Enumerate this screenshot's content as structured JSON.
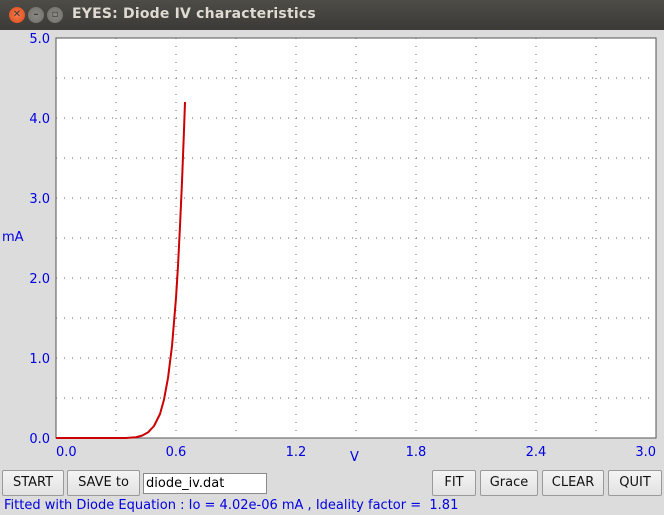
{
  "window": {
    "title": "EYES: Diode IV characteristics",
    "close_glyph": "✕",
    "minimize_glyph": "–",
    "maximize_glyph": "▫"
  },
  "chart_data": {
    "type": "line",
    "xlabel": "V",
    "ylabel": "mA",
    "xlim": [
      0.0,
      3.0
    ],
    "ylim": [
      0.0,
      5.0
    ],
    "x_ticks": [
      "0.0",
      "0.6",
      "1.2",
      "1.8",
      "2.4",
      "3.0"
    ],
    "y_ticks": [
      "0.0",
      "1.0",
      "2.0",
      "3.0",
      "4.0",
      "5.0"
    ],
    "grid": "dotted",
    "background": "#ffffff",
    "series": [
      {
        "color": "#cc0000",
        "x": [
          0.0,
          0.1,
          0.2,
          0.3,
          0.35,
          0.4,
          0.43,
          0.46,
          0.49,
          0.52,
          0.54,
          0.56,
          0.58,
          0.6,
          0.61,
          0.62,
          0.63,
          0.64,
          0.645
        ],
        "y": [
          0.0,
          0.0,
          0.0,
          0.0,
          0.0,
          0.01,
          0.03,
          0.07,
          0.15,
          0.3,
          0.48,
          0.75,
          1.15,
          1.75,
          2.15,
          2.65,
          3.2,
          3.85,
          4.2
        ]
      }
    ]
  },
  "controls": {
    "start_label": "START",
    "save_label": "SAVE to",
    "filename_value": "diode_iv.dat",
    "fit_label": "FIT",
    "grace_label": "Grace",
    "clear_label": "CLEAR",
    "quit_label": "QUIT"
  },
  "status": {
    "message": "Fitted with Diode Equation : Io = 4.02e-06 mA , Ideality factor =  1.81"
  }
}
